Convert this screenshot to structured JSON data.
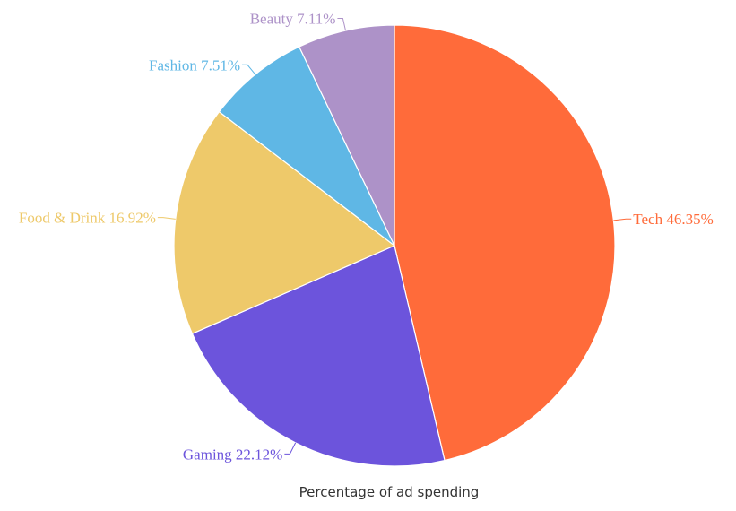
{
  "chart_data": {
    "type": "pie",
    "title": "",
    "caption": "Percentage of ad spending",
    "legend": "none",
    "slices": [
      {
        "label": "Tech",
        "value": 46.35,
        "display": "Tech 46.35%",
        "color": "#FF6B3A"
      },
      {
        "label": "Gaming",
        "value": 22.12,
        "display": "Gaming 22.12%",
        "color": "#6C54DC"
      },
      {
        "label": "Food & Drink",
        "value": 16.92,
        "display": "Food & Drink 16.92%",
        "color": "#EEC96A"
      },
      {
        "label": "Fashion",
        "value": 7.51,
        "display": "Fashion 7.51%",
        "color": "#5FB7E5"
      },
      {
        "label": "Beauty",
        "value": 7.11,
        "display": "Beauty 7.11%",
        "color": "#AD92C8"
      }
    ]
  }
}
